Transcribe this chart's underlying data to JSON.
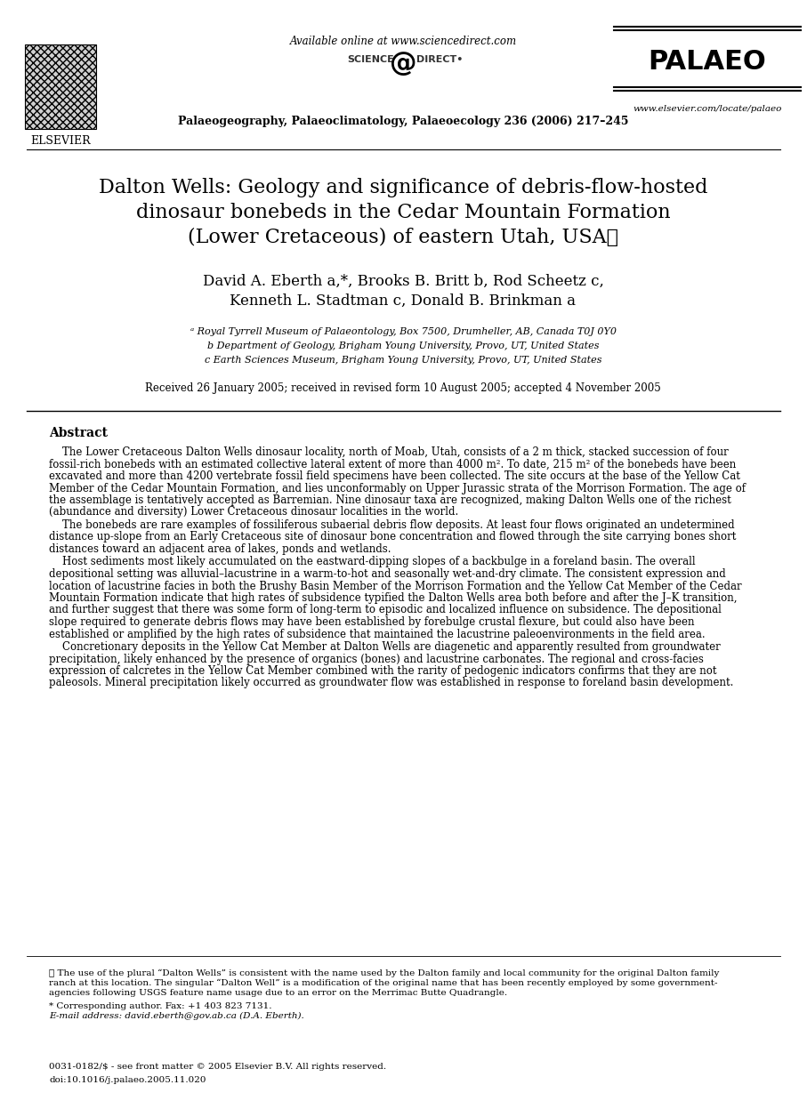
{
  "available_online": "Available online at www.sciencedirect.com",
  "journal_name": "Palaeogeography, Palaeoclimatology, Palaeoecology 236 (2006) 217–245",
  "palaeo_text": "PALAEO",
  "elsevier_text": "ELSEVIER",
  "sciencedirect_text": "SCIENCE    DIRECT•",
  "website": "www.elsevier.com/locate/palaeo",
  "title_line1": "Dalton Wells: Geology and significance of debris-flow-hosted",
  "title_line2": "dinosaur bonebeds in the Cedar Mountain Formation",
  "title_line3": "(Lower Cretaceous) of eastern Utah, USA☆",
  "authors_line1": "David A. Eberth a,*, Brooks B. Britt b, Rod Scheetz c,",
  "authors_line2": "Kenneth L. Stadtman c, Donald B. Brinkman a",
  "affil_a": "ᵃ Royal Tyrrell Museum of Palaeontology, Box 7500, Drumheller, AB, Canada T0J 0Y0",
  "affil_b": "b Department of Geology, Brigham Young University, Provo, UT, United States",
  "affil_c": "c Earth Sciences Museum, Brigham Young University, Provo, UT, United States",
  "received": "Received 26 January 2005; received in revised form 10 August 2005; accepted 4 November 2005",
  "abstract_title": "Abstract",
  "abstract_p1": "    The Lower Cretaceous Dalton Wells dinosaur locality, north of Moab, Utah, consists of a 2 m thick, stacked succession of four\nfossil-rich bonebeds with an estimated collective lateral extent of more than 4000 m². To date, 215 m² of the bonebeds have been\nexcavated and more than 4200 vertebrate fossil field specimens have been collected. The site occurs at the base of the Yellow Cat\nMember of the Cedar Mountain Formation, and lies unconformably on Upper Jurassic strata of the Morrison Formation. The age of\nthe assemblage is tentatively accepted as Barremian. Nine dinosaur taxa are recognized, making Dalton Wells one of the richest\n(abundance and diversity) Lower Cretaceous dinosaur localities in the world.",
  "abstract_p2": "    The bonebeds are rare examples of fossiliferous subaerial debris flow deposits. At least four flows originated an undetermined\ndistance up-slope from an Early Cretaceous site of dinosaur bone concentration and flowed through the site carrying bones short\ndistances toward an adjacent area of lakes, ponds and wetlands.",
  "abstract_p3": "    Host sediments most likely accumulated on the eastward-dipping slopes of a backbulge in a foreland basin. The overall\ndepositional setting was alluvial–lacustrine in a warm-to-hot and seasonally wet-and-dry climate. The consistent expression and\nlocation of lacustrine facies in both the Brushy Basin Member of the Morrison Formation and the Yellow Cat Member of the Cedar\nMountain Formation indicate that high rates of subsidence typified the Dalton Wells area both before and after the J–K transition,\nand further suggest that there was some form of long-term to episodic and localized influence on subsidence. The depositional\nslope required to generate debris flows may have been established by forebulge crustal flexure, but could also have been\nestablished or amplified by the high rates of subsidence that maintained the lacustrine paleoenvironments in the field area.",
  "abstract_p4": "    Concretionary deposits in the Yellow Cat Member at Dalton Wells are diagenetic and apparently resulted from groundwater\nprecipitation, likely enhanced by the presence of organics (bones) and lacustrine carbonates. The regional and cross-facies\nexpression of calcretes in the Yellow Cat Member combined with the rarity of pedogenic indicators confirms that they are not\npaleosols. Mineral precipitation likely occurred as groundwater flow was established in response to foreland basin development.",
  "footnote_star": "☆ The use of the plural “Dalton Wells” is consistent with the name used by the Dalton family and local community for the original Dalton family\nranch at this location. The singular “Dalton Well” is a modification of the original name that has been recently employed by some government-\nagencies following USGS feature name usage due to an error on the Merrimac Butte Quadrangle.",
  "footnote_corresp": "* Corresponding author. Fax: +1 403 823 7131.",
  "footnote_email": "E-mail address: david.eberth@gov.ab.ca (D.A. Eberth).",
  "issn": "0031-0182/$ - see front matter © 2005 Elsevier B.V. All rights reserved.",
  "doi": "doi:10.1016/j.palaeo.2005.11.020",
  "bg_color": "#ffffff",
  "text_color": "#000000"
}
